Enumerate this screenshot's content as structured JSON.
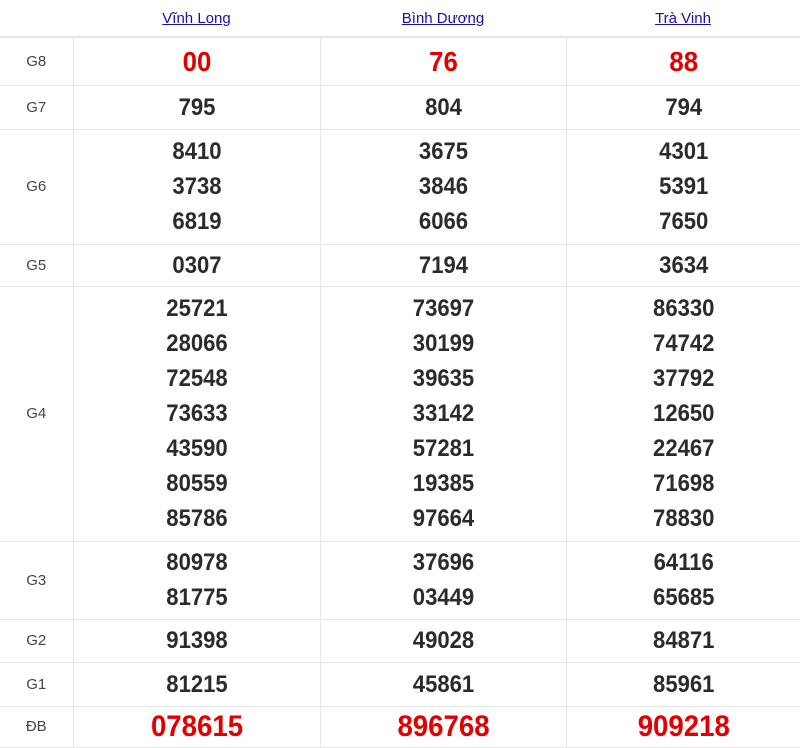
{
  "provinces": [
    "Vĩnh Long",
    "Bình Dương",
    "Trà Vinh"
  ],
  "colors": {
    "link": "#1a0dab",
    "highlight": "#e00000",
    "number": "#2b2b2b"
  },
  "prizes": [
    {
      "label": "G8",
      "cls": "g8",
      "highlight": true,
      "results": [
        [
          "00"
        ],
        [
          "76"
        ],
        [
          "88"
        ]
      ]
    },
    {
      "label": "G7",
      "cls": "g7",
      "highlight": false,
      "results": [
        [
          "795"
        ],
        [
          "804"
        ],
        [
          "794"
        ]
      ]
    },
    {
      "label": "G6",
      "cls": "g6",
      "highlight": false,
      "results": [
        [
          "8410",
          "3738",
          "6819"
        ],
        [
          "3675",
          "3846",
          "6066"
        ],
        [
          "4301",
          "5391",
          "7650"
        ]
      ]
    },
    {
      "label": "G5",
      "cls": "g5",
      "highlight": false,
      "results": [
        [
          "0307"
        ],
        [
          "7194"
        ],
        [
          "3634"
        ]
      ]
    },
    {
      "label": "G4",
      "cls": "g4",
      "highlight": false,
      "results": [
        [
          "25721",
          "28066",
          "72548",
          "73633",
          "43590",
          "80559",
          "85786"
        ],
        [
          "73697",
          "30199",
          "39635",
          "33142",
          "57281",
          "19385",
          "97664"
        ],
        [
          "86330",
          "74742",
          "37792",
          "12650",
          "22467",
          "71698",
          "78830"
        ]
      ]
    },
    {
      "label": "G3",
      "cls": "g3",
      "highlight": false,
      "results": [
        [
          "80978",
          "81775"
        ],
        [
          "37696",
          "03449"
        ],
        [
          "64116",
          "65685"
        ]
      ]
    },
    {
      "label": "G2",
      "cls": "g2",
      "highlight": false,
      "results": [
        [
          "91398"
        ],
        [
          "49028"
        ],
        [
          "84871"
        ]
      ]
    },
    {
      "label": "G1",
      "cls": "g1",
      "highlight": false,
      "results": [
        [
          "81215"
        ],
        [
          "45861"
        ],
        [
          "85961"
        ]
      ]
    },
    {
      "label": "ĐB",
      "cls": "db",
      "highlight": true,
      "results": [
        [
          "078615"
        ],
        [
          "896768"
        ],
        [
          "909218"
        ]
      ]
    }
  ]
}
